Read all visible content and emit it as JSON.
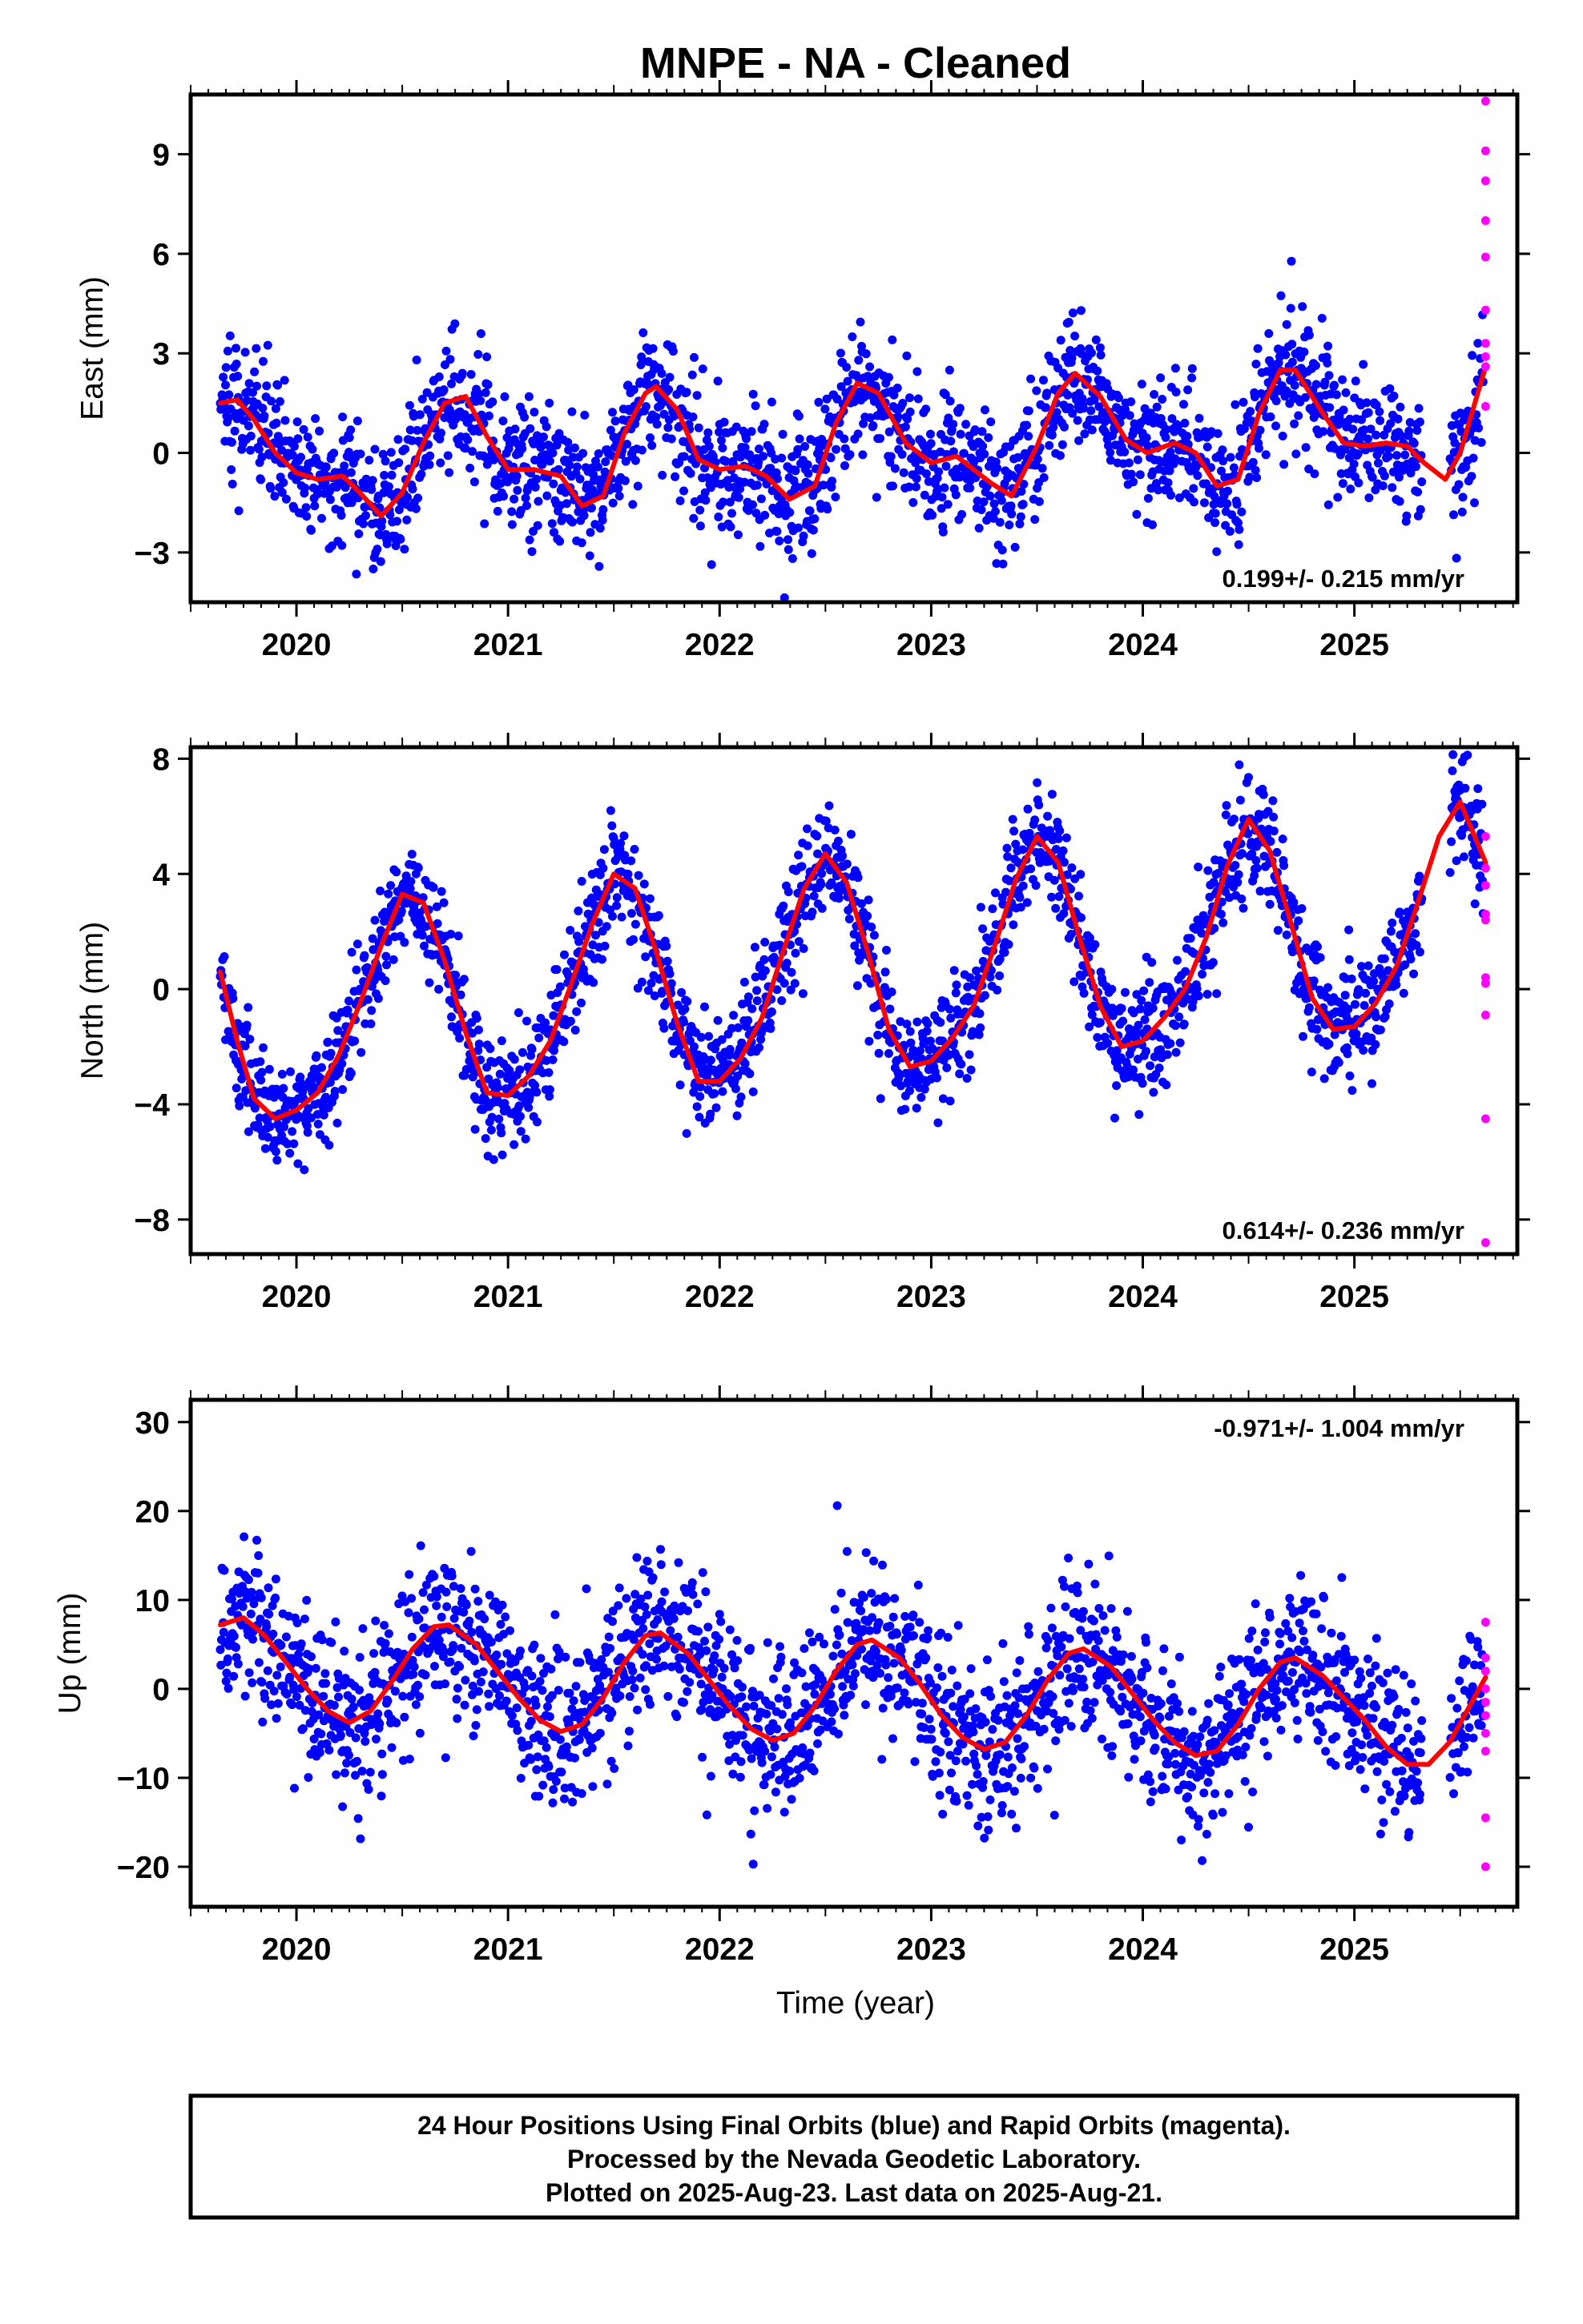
{
  "title": "MNPE  - NA - Cleaned",
  "xlabel": "Time (year)",
  "footer": [
    "24 Hour Positions Using Final Orbits (blue) and Rapid Orbits (magenta).",
    "Processed by the Nevada Geodetic Laboratory.",
    "Plotted on 2025-Aug-23. Last data on 2025-Aug-21."
  ],
  "colors": {
    "final": "#0000ff",
    "rapid": "#ff00ff",
    "model": "#ff0000"
  },
  "chart_data": [
    {
      "type": "scatter",
      "ylabel": "East (mm)",
      "xlim": [
        2019.5,
        2025.77
      ],
      "ylim": [
        -4.5,
        10.8
      ],
      "x_ticks": [
        2020,
        2021,
        2022,
        2023,
        2024,
        2025
      ],
      "y_ticks": [
        -3,
        0,
        3,
        6,
        9
      ],
      "rate_label": "0.199+/- 0.215 mm/yr",
      "rate_position": "bottom-right",
      "model_curve": {
        "x": [
          2019.64,
          2019.72,
          2019.8,
          2019.9,
          2020.0,
          2020.1,
          2020.22,
          2020.3,
          2020.4,
          2020.5,
          2020.6,
          2020.7,
          2020.8,
          2020.9,
          2021.0,
          2021.12,
          2021.25,
          2021.35,
          2021.45,
          2021.55,
          2021.65,
          2021.7,
          2021.8,
          2021.9,
          2022.0,
          2022.12,
          2022.22,
          2022.33,
          2022.45,
          2022.55,
          2022.65,
          2022.75,
          2022.88,
          2023.0,
          2023.12,
          2023.28,
          2023.38,
          2023.5,
          2023.6,
          2023.68,
          2023.8,
          2023.92,
          2024.02,
          2024.15,
          2024.25,
          2024.35,
          2024.45,
          2024.55,
          2024.65,
          2024.72,
          2024.85,
          2024.95,
          2025.05,
          2025.15,
          2025.25,
          2025.33,
          2025.43,
          2025.5,
          2025.62
        ],
        "y": [
          1.5,
          1.6,
          1.0,
          0.0,
          -0.6,
          -0.8,
          -0.7,
          -1.2,
          -1.9,
          -1.2,
          0.3,
          1.5,
          1.7,
          0.5,
          -0.5,
          -0.5,
          -0.7,
          -1.6,
          -1.3,
          0.6,
          1.8,
          2.0,
          1.3,
          -0.2,
          -0.5,
          -0.4,
          -0.7,
          -1.4,
          -1.0,
          0.9,
          2.1,
          1.8,
          0.3,
          -0.3,
          -0.1,
          -0.9,
          -1.3,
          0.2,
          1.8,
          2.4,
          1.7,
          0.4,
          0.0,
          0.3,
          0.0,
          -1.0,
          -0.8,
          1.2,
          2.5,
          2.5,
          1.2,
          0.3,
          0.2,
          0.3,
          0.2,
          -0.3,
          -0.8,
          0.0,
          2.6
        ]
      },
      "scatter_amplitude": 1.0,
      "rapid_points": {
        "x": [
          2025.62,
          2025.62,
          2025.62,
          2025.62,
          2025.62,
          2025.62,
          2025.62,
          2025.62,
          2025.62,
          2025.62
        ],
        "y": [
          10.6,
          9.1,
          8.2,
          7.0,
          5.9,
          4.3,
          3.3,
          2.9,
          2.6,
          1.4
        ]
      }
    },
    {
      "type": "scatter",
      "ylabel": "North (mm)",
      "xlim": [
        2019.5,
        2025.77
      ],
      "ylim": [
        -9.2,
        8.4
      ],
      "x_ticks": [
        2020,
        2021,
        2022,
        2023,
        2024,
        2025
      ],
      "y_ticks": [
        -8,
        -4,
        0,
        4,
        8
      ],
      "rate_label": "0.614+/- 0.236 mm/yr",
      "rate_position": "bottom-right",
      "model_curve": {
        "x": [
          2019.64,
          2019.72,
          2019.8,
          2019.9,
          2020.0,
          2020.1,
          2020.2,
          2020.3,
          2020.4,
          2020.5,
          2020.6,
          2020.7,
          2020.8,
          2020.9,
          2021.0,
          2021.1,
          2021.2,
          2021.3,
          2021.4,
          2021.5,
          2021.6,
          2021.7,
          2021.8,
          2021.9,
          2022.0,
          2022.1,
          2022.2,
          2022.3,
          2022.4,
          2022.5,
          2022.6,
          2022.7,
          2022.8,
          2022.9,
          2023.0,
          2023.1,
          2023.2,
          2023.3,
          2023.4,
          2023.5,
          2023.6,
          2023.7,
          2023.8,
          2023.9,
          2024.0,
          2024.1,
          2024.2,
          2024.3,
          2024.4,
          2024.5,
          2024.6,
          2024.7,
          2024.8,
          2024.9,
          2025.0,
          2025.1,
          2025.2,
          2025.3,
          2025.4,
          2025.5,
          2025.62
        ],
        "y": [
          0.6,
          -1.8,
          -3.8,
          -4.5,
          -4.2,
          -3.6,
          -2.3,
          -0.5,
          1.5,
          3.3,
          3.0,
          1.0,
          -1.5,
          -3.6,
          -3.7,
          -3.0,
          -1.8,
          0.2,
          2.3,
          4.0,
          3.5,
          1.3,
          -1.2,
          -3.2,
          -3.2,
          -2.4,
          -1.0,
          1.3,
          3.5,
          4.7,
          3.7,
          1.3,
          -1.4,
          -2.7,
          -2.5,
          -1.7,
          -0.6,
          1.5,
          3.8,
          5.3,
          4.4,
          1.8,
          -0.6,
          -2.0,
          -1.8,
          -1.0,
          0.0,
          1.8,
          4.3,
          5.9,
          4.8,
          2.3,
          -0.3,
          -1.4,
          -1.3,
          -0.5,
          0.8,
          3.0,
          5.3,
          6.5,
          4.4
        ]
      },
      "scatter_amplitude": 1.0,
      "rapid_points": {
        "x": [
          2025.62,
          2025.62,
          2025.62,
          2025.62,
          2025.62,
          2025.62,
          2025.62,
          2025.62,
          2025.62,
          2025.62
        ],
        "y": [
          5.3,
          4.2,
          3.6,
          2.6,
          2.4,
          0.4,
          0.2,
          -0.9,
          -4.5,
          -8.8
        ]
      }
    },
    {
      "type": "scatter",
      "ylabel": "Up (mm)",
      "xlim": [
        2019.5,
        2025.77
      ],
      "ylim": [
        -24.5,
        32.5
      ],
      "x_ticks": [
        2020,
        2021,
        2022,
        2023,
        2024,
        2025
      ],
      "y_ticks": [
        -20,
        -10,
        0,
        10,
        20,
        30
      ],
      "rate_label": "-0.971+/- 1.004 mm/yr",
      "rate_position": "top-right",
      "model_curve": {
        "x": [
          2019.64,
          2019.75,
          2019.85,
          2019.95,
          2020.05,
          2020.15,
          2020.25,
          2020.35,
          2020.45,
          2020.55,
          2020.65,
          2020.72,
          2020.85,
          2020.95,
          2021.05,
          2021.15,
          2021.25,
          2021.35,
          2021.45,
          2021.55,
          2021.65,
          2021.72,
          2021.85,
          2021.95,
          2022.05,
          2022.15,
          2022.25,
          2022.35,
          2022.45,
          2022.55,
          2022.65,
          2022.72,
          2022.85,
          2022.95,
          2023.05,
          2023.15,
          2023.25,
          2023.35,
          2023.45,
          2023.55,
          2023.65,
          2023.72,
          2023.85,
          2023.95,
          2024.05,
          2024.15,
          2024.25,
          2024.35,
          2024.45,
          2024.55,
          2024.65,
          2024.72,
          2024.85,
          2024.95,
          2025.05,
          2025.15,
          2025.25,
          2025.35,
          2025.45,
          2025.62
        ],
        "y": [
          7.2,
          8.0,
          6.0,
          3.0,
          0.0,
          -2.5,
          -3.8,
          -2.5,
          0.8,
          4.5,
          7.0,
          7.2,
          5.0,
          2.0,
          -1.0,
          -3.5,
          -4.8,
          -4.0,
          -1.0,
          3.0,
          6.0,
          6.3,
          4.0,
          1.0,
          -2.0,
          -4.5,
          -5.8,
          -5.0,
          -2.0,
          2.0,
          5.0,
          5.5,
          3.5,
          0.5,
          -3.0,
          -5.5,
          -6.8,
          -6.0,
          -3.0,
          1.0,
          4.0,
          4.5,
          2.5,
          -0.5,
          -3.5,
          -6.0,
          -7.5,
          -7.0,
          -4.0,
          0.0,
          3.0,
          3.5,
          1.5,
          -1.0,
          -3.5,
          -6.5,
          -8.5,
          -8.5,
          -6.0,
          1.3
        ]
      },
      "scatter_amplitude": 4.5,
      "rapid_points": {
        "x": [
          2025.62,
          2025.62,
          2025.62,
          2025.62,
          2025.62,
          2025.62,
          2025.62,
          2025.62,
          2025.62,
          2025.62
        ],
        "y": [
          7.5,
          3.5,
          2.0,
          0.0,
          -1.5,
          -3.0,
          -5.0,
          -7.0,
          -14.5,
          -20.0
        ]
      }
    }
  ]
}
